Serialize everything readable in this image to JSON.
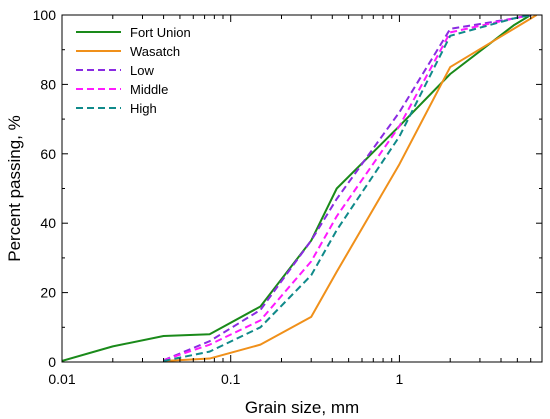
{
  "chart_data": {
    "type": "line",
    "title": "",
    "xlabel": "Grain size, mm",
    "ylabel": "Percent passing, %",
    "x_scale": "log",
    "xlim": [
      0.01,
      7
    ],
    "ylim": [
      0,
      100
    ],
    "x_ticks": [
      0.01,
      0.1,
      1
    ],
    "x_tick_labels": [
      "0.01",
      "0.1",
      "1"
    ],
    "y_ticks": [
      0,
      20,
      40,
      60,
      80,
      100
    ],
    "y_tick_labels": [
      "0",
      "20",
      "40",
      "60",
      "80",
      "100"
    ],
    "grid": false,
    "legend_position": "top-left",
    "series": [
      {
        "name": "Fort Union",
        "color": "#1a8a1a",
        "style": "solid",
        "x": [
          0.01,
          0.02,
          0.04,
          0.075,
          0.15,
          0.3,
          0.425,
          1,
          2,
          4.75,
          6
        ],
        "y": [
          0.3,
          4.5,
          7.5,
          8,
          16,
          35,
          50,
          68,
          83,
          97,
          100
        ]
      },
      {
        "name": "Wasatch",
        "color": "#f0901a",
        "style": "solid",
        "x": [
          0.04,
          0.075,
          0.15,
          0.3,
          0.425,
          1,
          2,
          4.75,
          6.5
        ],
        "y": [
          0.3,
          1,
          5,
          13,
          26,
          57,
          85,
          96,
          100
        ]
      },
      {
        "name": "Low",
        "color": "#8a2be2",
        "style": "dashed",
        "x": [
          0.04,
          0.075,
          0.15,
          0.3,
          0.425,
          1,
          2,
          4.75,
          6
        ],
        "y": [
          0.5,
          6,
          15,
          35,
          47,
          72,
          96,
          99,
          100
        ]
      },
      {
        "name": "Middle",
        "color": "#ff1aff",
        "style": "dashed",
        "x": [
          0.04,
          0.075,
          0.15,
          0.3,
          0.425,
          1,
          2,
          4.75,
          6
        ],
        "y": [
          0.5,
          5,
          12,
          29,
          42,
          68,
          95,
          99,
          100
        ]
      },
      {
        "name": "High",
        "color": "#108a8a",
        "style": "dashed",
        "x": [
          0.04,
          0.075,
          0.15,
          0.3,
          0.425,
          1,
          2,
          4.75,
          6
        ],
        "y": [
          0.3,
          3,
          10,
          25,
          38,
          65,
          94,
          99,
          100
        ]
      }
    ]
  }
}
